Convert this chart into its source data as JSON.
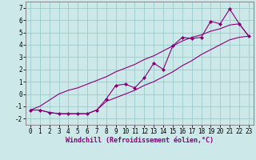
{
  "xlabel": "Windchill (Refroidissement éolien,°C)",
  "bg_color": "#cce8e8",
  "line_color": "#880077",
  "xlim": [
    -0.5,
    23.5
  ],
  "ylim": [
    -2.5,
    7.5
  ],
  "xticks": [
    0,
    1,
    2,
    3,
    4,
    5,
    6,
    7,
    8,
    9,
    10,
    11,
    12,
    13,
    14,
    15,
    16,
    17,
    18,
    19,
    20,
    21,
    22,
    23
  ],
  "yticks": [
    -2,
    -1,
    0,
    1,
    2,
    3,
    4,
    5,
    6,
    7
  ],
  "grid_color": "#99cccc",
  "x_data": [
    0,
    1,
    2,
    3,
    4,
    5,
    6,
    7,
    8,
    9,
    10,
    11,
    12,
    13,
    14,
    15,
    16,
    17,
    18,
    19,
    20,
    21,
    22,
    23
  ],
  "y_mid": [
    -1.3,
    -1.3,
    -1.5,
    -1.6,
    -1.6,
    -1.6,
    -1.6,
    -1.3,
    -0.4,
    0.7,
    0.8,
    0.5,
    1.3,
    2.5,
    2.0,
    3.9,
    4.6,
    4.5,
    4.6,
    5.9,
    5.7,
    6.9,
    5.7,
    4.7
  ],
  "y_env_low": [
    -1.3,
    -1.3,
    -1.5,
    -1.6,
    -1.6,
    -1.6,
    -1.6,
    -1.3,
    -0.6,
    -0.3,
    0.0,
    0.3,
    0.7,
    1.0,
    1.4,
    1.8,
    2.3,
    2.7,
    3.2,
    3.6,
    4.0,
    4.4,
    4.6,
    4.7
  ],
  "y_env_high": [
    -1.3,
    -1.0,
    -0.5,
    0.0,
    0.3,
    0.5,
    0.8,
    1.1,
    1.4,
    1.8,
    2.1,
    2.4,
    2.8,
    3.1,
    3.5,
    3.9,
    4.3,
    4.6,
    4.8,
    5.1,
    5.3,
    5.6,
    5.7,
    4.7
  ],
  "marker": "D",
  "marker_size": 2.0,
  "linewidth": 0.8,
  "tick_fontsize": 5.5,
  "xlabel_fontsize": 6.0
}
